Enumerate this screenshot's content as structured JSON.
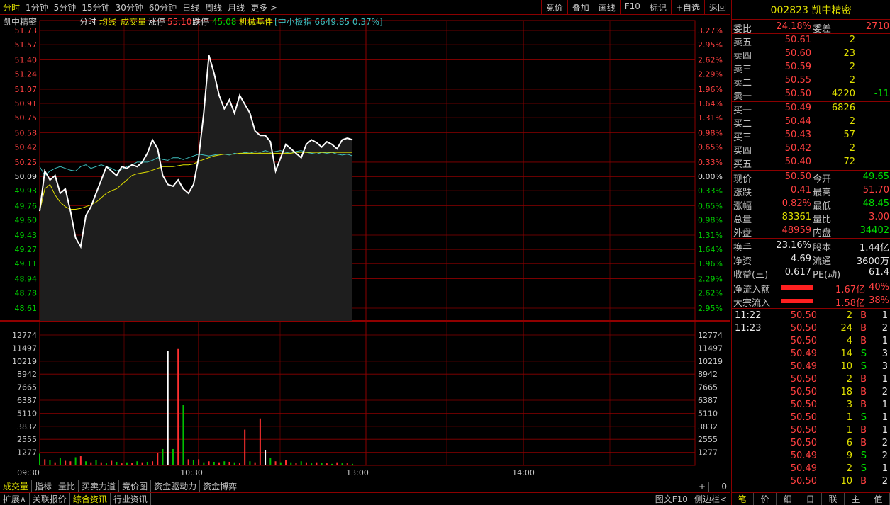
{
  "toolbar": {
    "tabs": [
      "分时",
      "1分钟",
      "5分钟",
      "15分钟",
      "30分钟",
      "60分钟",
      "日线",
      "周线",
      "月线",
      "更多 >"
    ],
    "right": [
      "竞价",
      "叠加",
      "画线",
      "F10",
      "标记",
      "+自选",
      "返回"
    ]
  },
  "legend": {
    "name": "凯中精密",
    "view": "分时",
    "avg": "均线",
    "vol": "成交量",
    "zt_label": "涨停",
    "zt": "55.10",
    "dt_label": "跌停",
    "dt": "45.08",
    "sector": "机械基件",
    "index": "[中小板指 6649.85 0.37%]"
  },
  "chart_data": {
    "type": "line",
    "prev_close": 50.09,
    "y_labels": [
      "51.73",
      "51.57",
      "51.40",
      "51.24",
      "51.07",
      "50.91",
      "50.75",
      "50.58",
      "50.42",
      "50.25",
      "50.09",
      "49.93",
      "49.76",
      "49.60",
      "49.43",
      "49.27",
      "49.11",
      "48.94",
      "48.78",
      "48.61"
    ],
    "pct_labels": [
      "3.27%",
      "2.95%",
      "2.62%",
      "2.29%",
      "1.96%",
      "1.64%",
      "1.31%",
      "0.98%",
      "0.65%",
      "0.33%",
      "0.00%",
      "0.33%",
      "0.65%",
      "0.98%",
      "1.31%",
      "1.64%",
      "1.96%",
      "2.29%",
      "2.62%",
      "2.95%"
    ],
    "vol_labels": [
      "12774",
      "11497",
      "10219",
      "8942",
      "7665",
      "6387",
      "5110",
      "3832",
      "2555",
      "1277"
    ],
    "x_labels": [
      "09:30",
      "10:30",
      "13:00",
      "14:00"
    ],
    "price": [
      49.7,
      50.15,
      50.05,
      50.1,
      49.9,
      49.95,
      49.7,
      49.4,
      49.3,
      49.65,
      49.75,
      49.9,
      50.05,
      50.2,
      50.15,
      50.1,
      50.2,
      50.18,
      50.22,
      50.2,
      50.25,
      50.35,
      50.5,
      50.4,
      50.1,
      50.0,
      49.98,
      50.05,
      49.95,
      49.9,
      50.0,
      50.3,
      50.8,
      51.45,
      51.25,
      51.0,
      50.85,
      50.95,
      50.8,
      51.0,
      50.9,
      50.8,
      50.6,
      50.55,
      50.55,
      50.48,
      50.15,
      50.3,
      50.45,
      50.4,
      50.35,
      50.3,
      50.45,
      50.5,
      50.47,
      50.42,
      50.48,
      50.45,
      50.4,
      50.5,
      50.52,
      50.5
    ],
    "avg": [
      49.7,
      49.95,
      50.0,
      49.88,
      49.8,
      49.75,
      49.72,
      49.72,
      49.73,
      49.75,
      49.77,
      49.8,
      49.85,
      49.9,
      49.93,
      49.95,
      50.0,
      50.05,
      50.1,
      50.12,
      50.13,
      50.14,
      50.16,
      50.18,
      50.2,
      50.2,
      50.2,
      50.21,
      50.22,
      50.22,
      50.23,
      50.26,
      50.28,
      50.3,
      50.32,
      50.33,
      50.34,
      50.34,
      50.34,
      50.35,
      50.35,
      50.35,
      50.35,
      50.35,
      50.35,
      50.35,
      50.35,
      50.35,
      50.35,
      50.35,
      50.36,
      50.36,
      50.36,
      50.36,
      50.36,
      50.36,
      50.36,
      50.36,
      50.36,
      50.36,
      50.36,
      50.36
    ],
    "index": [
      50.2,
      50.1,
      50.15,
      50.18,
      50.2,
      50.18,
      50.16,
      50.15,
      50.2,
      50.22,
      50.18,
      50.2,
      50.22,
      50.2,
      50.18,
      50.15,
      50.17,
      50.2,
      50.22,
      50.25,
      50.25,
      50.25,
      50.27,
      50.3,
      50.28,
      50.27,
      50.3,
      50.3,
      50.28,
      50.3,
      50.32,
      50.34,
      50.33,
      50.32,
      50.33,
      50.34,
      50.34,
      50.33,
      50.35,
      50.34,
      50.36,
      50.35,
      50.37,
      50.36,
      50.38,
      50.36,
      50.37,
      50.38,
      50.36,
      50.35,
      50.37,
      50.38,
      50.36,
      50.35,
      50.34,
      50.36,
      50.35,
      50.36,
      50.34,
      50.33,
      50.34,
      50.32
    ],
    "volume": [
      1150,
      600,
      500,
      300,
      700,
      450,
      400,
      800,
      900,
      400,
      300,
      500,
      300,
      200,
      450,
      350,
      200,
      300,
      250,
      400,
      300,
      350,
      400,
      1200,
      1600,
      11200,
      1600,
      11400,
      5900,
      600,
      500,
      600,
      300,
      400,
      350,
      300,
      400,
      350,
      300,
      200,
      3500,
      400,
      300,
      4600,
      1500,
      700,
      400,
      300,
      500,
      300,
      250,
      400,
      300,
      200,
      300,
      250,
      200,
      150,
      300,
      200,
      250,
      150
    ],
    "vol_colors": [
      "g",
      "r",
      "g",
      "r",
      "g",
      "r",
      "r",
      "g",
      "r",
      "g",
      "r",
      "g",
      "r",
      "g",
      "r",
      "g",
      "r",
      "g",
      "r",
      "g",
      "r",
      "g",
      "r",
      "r",
      "g",
      "w",
      "g",
      "r",
      "g",
      "r",
      "g",
      "r",
      "g",
      "r",
      "g",
      "r",
      "g",
      "r",
      "g",
      "r",
      "r",
      "g",
      "r",
      "r",
      "w",
      "g",
      "r",
      "g",
      "r",
      "g",
      "r",
      "g",
      "r",
      "g",
      "r",
      "g",
      "r",
      "g",
      "r",
      "g",
      "r",
      "g"
    ]
  },
  "quote": {
    "code_title": "002823 凯中精密",
    "weibi_l": "委比",
    "weibi": "24.18%",
    "weicha_l": "委差",
    "weicha": "2710",
    "asks": [
      {
        "l": "卖五",
        "p": "50.61",
        "v": "2",
        "c": ""
      },
      {
        "l": "卖四",
        "p": "50.60",
        "v": "23",
        "c": ""
      },
      {
        "l": "卖三",
        "p": "50.59",
        "v": "2",
        "c": ""
      },
      {
        "l": "卖二",
        "p": "50.55",
        "v": "2",
        "c": ""
      },
      {
        "l": "卖一",
        "p": "50.50",
        "v": "4220",
        "c": "-11"
      }
    ],
    "bids": [
      {
        "l": "买一",
        "p": "50.49",
        "v": "6826",
        "c": ""
      },
      {
        "l": "买二",
        "p": "50.44",
        "v": "2",
        "c": ""
      },
      {
        "l": "买三",
        "p": "50.43",
        "v": "57",
        "c": ""
      },
      {
        "l": "买四",
        "p": "50.42",
        "v": "2",
        "c": ""
      },
      {
        "l": "买五",
        "p": "50.40",
        "v": "72",
        "c": ""
      }
    ],
    "stats": [
      [
        "现价",
        "50.50",
        "今开",
        "49.65"
      ],
      [
        "涨跌",
        "0.41",
        "最高",
        "51.70"
      ],
      [
        "涨幅",
        "0.82%",
        "最低",
        "48.45"
      ],
      [
        "总量",
        "83361",
        "量比",
        "3.00"
      ],
      [
        "外盘",
        "48959",
        "内盘",
        "34402"
      ]
    ],
    "stats2": [
      [
        "换手",
        "23.16%",
        "股本",
        "1.44亿"
      ],
      [
        "净资",
        "4.69",
        "流通",
        "3600万"
      ],
      [
        "收益(三)",
        "0.617",
        "PE(动)",
        "61.4"
      ]
    ],
    "flow": [
      [
        "净流入额",
        "1.67亿",
        "40%"
      ],
      [
        "大宗流入",
        "1.58亿",
        "38%"
      ]
    ],
    "ticks": [
      [
        "11:22",
        "50.50",
        "2",
        "B",
        "1"
      ],
      [
        "11:23",
        "50.50",
        "24",
        "B",
        "2"
      ],
      [
        "",
        "50.50",
        "4",
        "B",
        "1"
      ],
      [
        "",
        "50.49",
        "14",
        "S",
        "3"
      ],
      [
        "",
        "50.49",
        "10",
        "S",
        "3"
      ],
      [
        "",
        "50.50",
        "2",
        "B",
        "1"
      ],
      [
        "",
        "50.50",
        "18",
        "B",
        "2"
      ],
      [
        "",
        "50.50",
        "3",
        "B",
        "1"
      ],
      [
        "",
        "50.50",
        "1",
        "S",
        "1"
      ],
      [
        "",
        "50.50",
        "1",
        "B",
        "1"
      ],
      [
        "",
        "50.50",
        "6",
        "B",
        "2"
      ],
      [
        "",
        "50.49",
        "9",
        "S",
        "2"
      ],
      [
        "",
        "50.49",
        "2",
        "S",
        "1"
      ],
      [
        "",
        "50.50",
        "10",
        "B",
        "2"
      ]
    ]
  },
  "bottom": {
    "tabs1": [
      "成交量",
      "指标",
      "量比",
      "买卖力道",
      "竞价图",
      "资金驱动力",
      "资金博弈"
    ],
    "ctrl": [
      "+",
      "-",
      "0"
    ],
    "tabs2": [
      "扩展∧",
      "关联报价",
      "综合资讯",
      "行业资讯"
    ],
    "right2": [
      "图文F10",
      "侧边栏<"
    ],
    "rtabs": [
      "笔",
      "价",
      "细",
      "日",
      "联",
      "主",
      "值"
    ]
  }
}
